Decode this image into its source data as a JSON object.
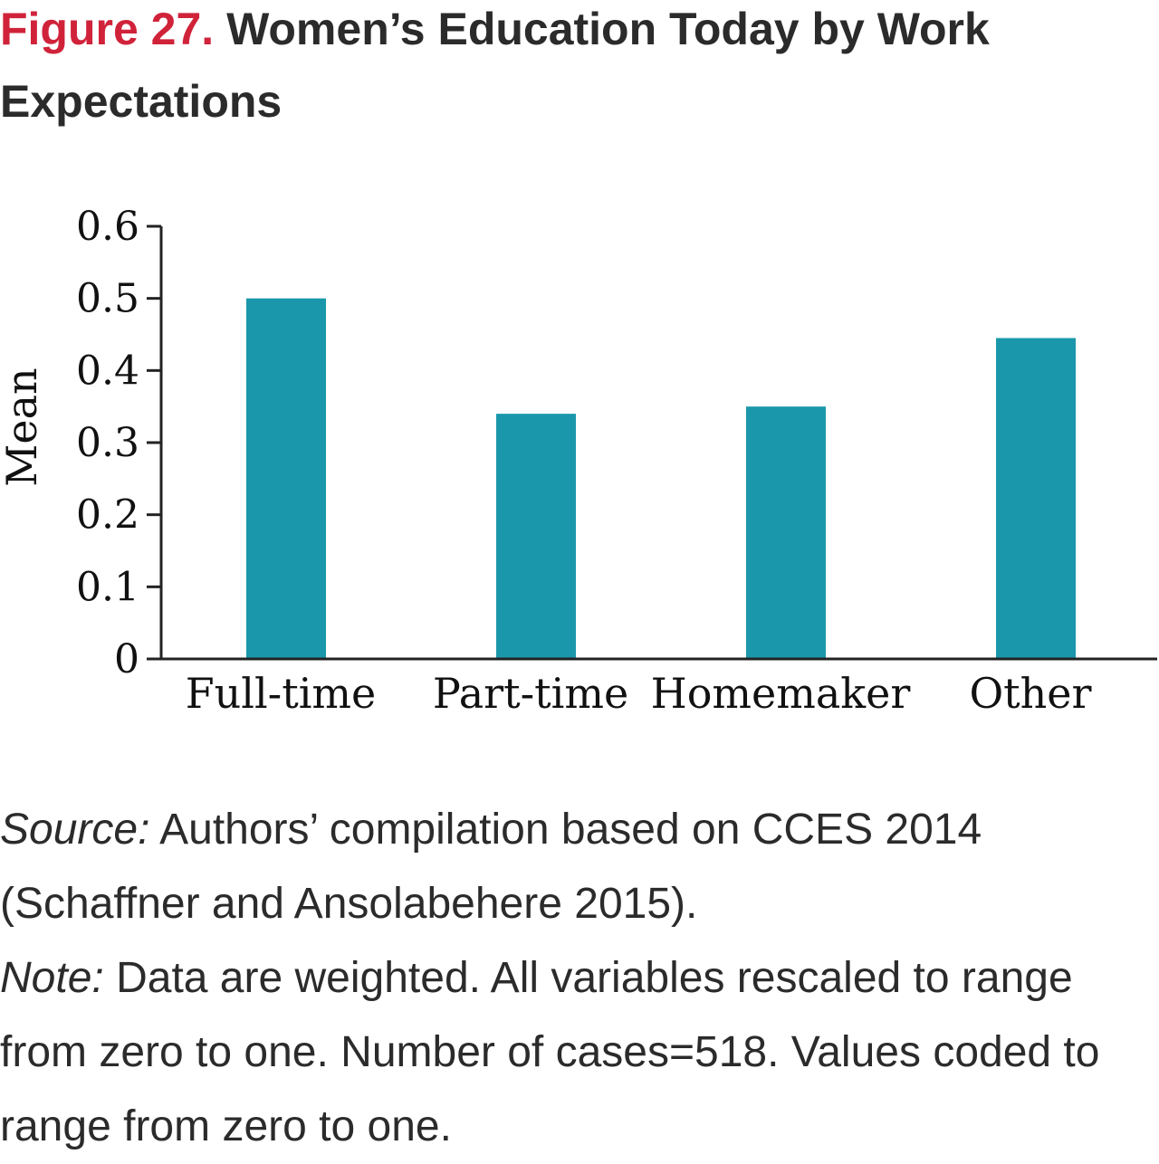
{
  "figure": {
    "number": "Figure 27.",
    "title": "Women’s Education Today by Work Expectations"
  },
  "chart_data": {
    "type": "bar",
    "categories": [
      "Full-time",
      "Part-time",
      "Homemaker",
      "Other"
    ],
    "values": [
      0.5,
      0.34,
      0.35,
      0.445
    ],
    "ylabel": "Mean",
    "xlabel": "",
    "ylim": [
      0,
      0.6
    ],
    "yticks": [
      "0",
      "0.1",
      "0.2",
      "0.3",
      "0.4",
      "0.5",
      "0.6"
    ],
    "bar_color": "#1b97ab",
    "grid": false,
    "legend": "none"
  },
  "source": {
    "label": "Source:",
    "text": "Authors’ compilation based on CCES 2014 (Schaffner and Ansolabehere 2015)."
  },
  "note": {
    "label": "Note:",
    "text": "Data are weighted. All variables rescaled to range from zero to one. Number of cases=518. Values coded to range from zero to one."
  }
}
